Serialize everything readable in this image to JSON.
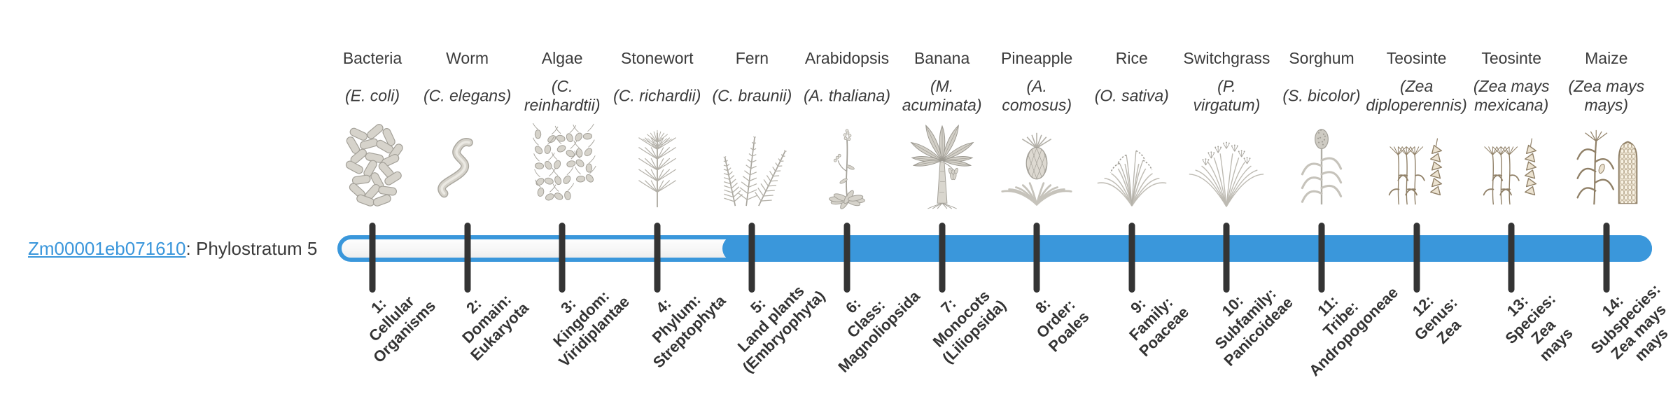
{
  "gene": {
    "id": "Zm00001eb071610",
    "suffix": ": Phylostratum 5"
  },
  "timeline": {
    "filled_from_stratum": 5,
    "total_strata": 14,
    "bar_color": "#3a97db",
    "tick_color": "#343434",
    "link_color": "#3a96db"
  },
  "organisms": [
    {
      "common": "Bacteria",
      "sci_lines": [
        "(E. coli)"
      ],
      "icon": "bacteria",
      "stratum_lines": [
        "1:",
        "Cellular",
        "Organisms"
      ]
    },
    {
      "common": "Worm",
      "sci_lines": [
        "(C. elegans)"
      ],
      "icon": "worm",
      "stratum_lines": [
        "2:",
        "Domain:",
        "Eukaryota"
      ]
    },
    {
      "common": "Algae",
      "sci_lines": [
        "(C.",
        "reinhardtii)"
      ],
      "icon": "algae",
      "stratum_lines": [
        "3:",
        "Kingdom:",
        "Viridiplantae"
      ]
    },
    {
      "common": "Stonewort",
      "sci_lines": [
        "(C. richardii)"
      ],
      "icon": "stonewort",
      "stratum_lines": [
        "4:",
        "Phylum:",
        "Streptophyta"
      ]
    },
    {
      "common": "Fern",
      "sci_lines": [
        "(C. braunii)"
      ],
      "icon": "fern",
      "stratum_lines": [
        "5:",
        "Land plants",
        "(Embryophyta)"
      ]
    },
    {
      "common": "Arabidopsis",
      "sci_lines": [
        "(A. thaliana)"
      ],
      "icon": "arabidopsis",
      "stratum_lines": [
        "6:",
        "Class:",
        "Magnoliopsida"
      ]
    },
    {
      "common": "Banana",
      "sci_lines": [
        "(M.",
        "acuminata)"
      ],
      "icon": "banana",
      "stratum_lines": [
        "7:",
        "Monocots",
        "(Liliopsida)"
      ]
    },
    {
      "common": "Pineapple",
      "sci_lines": [
        "(A.",
        "comosus)"
      ],
      "icon": "pineapple",
      "stratum_lines": [
        "8:",
        "Order:",
        "Poales"
      ]
    },
    {
      "common": "Rice",
      "sci_lines": [
        "(O. sativa)"
      ],
      "icon": "rice",
      "stratum_lines": [
        "9:",
        "Family:",
        "Poaceae"
      ]
    },
    {
      "common": "Switchgrass",
      "sci_lines": [
        "(P.",
        "virgatum)"
      ],
      "icon": "switchgrass",
      "stratum_lines": [
        "10:",
        "Subfamily:",
        "Panicoideae"
      ]
    },
    {
      "common": "Sorghum",
      "sci_lines": [
        "(S. bicolor)"
      ],
      "icon": "sorghum",
      "stratum_lines": [
        "11:",
        "Tribe:",
        "Andropogoneae"
      ]
    },
    {
      "common": "Teosinte",
      "sci_lines": [
        "(Zea",
        "diploperennis)"
      ],
      "icon": "teosinte",
      "stratum_lines": [
        "12:",
        "Genus:",
        "Zea"
      ]
    },
    {
      "common": "Teosinte",
      "sci_lines": [
        "(Zea mays",
        "mexicana)"
      ],
      "icon": "teosinte",
      "stratum_lines": [
        "13:",
        "Species:",
        "Zea",
        "mays"
      ]
    },
    {
      "common": "Maize",
      "sci_lines": [
        "(Zea mays",
        "mays)"
      ],
      "icon": "maize",
      "stratum_lines": [
        "14:",
        "Subspecies:",
        "Zea mays",
        "mays"
      ]
    }
  ]
}
